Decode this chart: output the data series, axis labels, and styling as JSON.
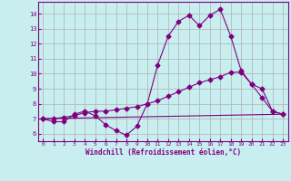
{
  "xlabel": "Windchill (Refroidissement éolien,°C)",
  "bg_color": "#c8eef0",
  "grid_color": "#b0b0b0",
  "line_color": "#800080",
  "xlim": [
    -0.5,
    23.5
  ],
  "ylim": [
    5.5,
    14.8
  ],
  "xticks": [
    0,
    1,
    2,
    3,
    4,
    5,
    6,
    7,
    8,
    9,
    10,
    11,
    12,
    13,
    14,
    15,
    16,
    17,
    18,
    19,
    20,
    21,
    22,
    23
  ],
  "yticks": [
    6,
    7,
    8,
    9,
    10,
    11,
    12,
    13,
    14
  ],
  "line1_x": [
    0,
    1,
    2,
    3,
    4,
    5,
    6,
    7,
    8,
    9,
    10,
    11,
    12,
    13,
    14,
    15,
    16,
    17,
    18,
    19,
    20,
    21,
    22,
    23
  ],
  "line1_y": [
    7.0,
    6.8,
    6.8,
    7.3,
    7.5,
    7.2,
    6.6,
    6.2,
    5.9,
    6.5,
    8.0,
    10.6,
    12.5,
    13.5,
    13.9,
    13.2,
    13.9,
    14.3,
    12.5,
    10.2,
    9.3,
    9.0,
    7.5,
    7.3
  ],
  "line2_x": [
    0,
    1,
    2,
    3,
    4,
    5,
    6,
    7,
    8,
    9,
    10,
    11,
    12,
    13,
    14,
    15,
    16,
    17,
    18,
    19,
    20,
    21,
    22,
    23
  ],
  "line2_y": [
    7.0,
    7.0,
    7.1,
    7.2,
    7.4,
    7.5,
    7.5,
    7.6,
    7.7,
    7.8,
    8.0,
    8.2,
    8.5,
    8.8,
    9.1,
    9.4,
    9.6,
    9.8,
    10.1,
    10.1,
    9.3,
    8.4,
    7.5,
    7.3
  ],
  "line3_x": [
    0,
    23
  ],
  "line3_y": [
    7.0,
    7.3
  ],
  "marker": "D",
  "markersize": 2.5
}
